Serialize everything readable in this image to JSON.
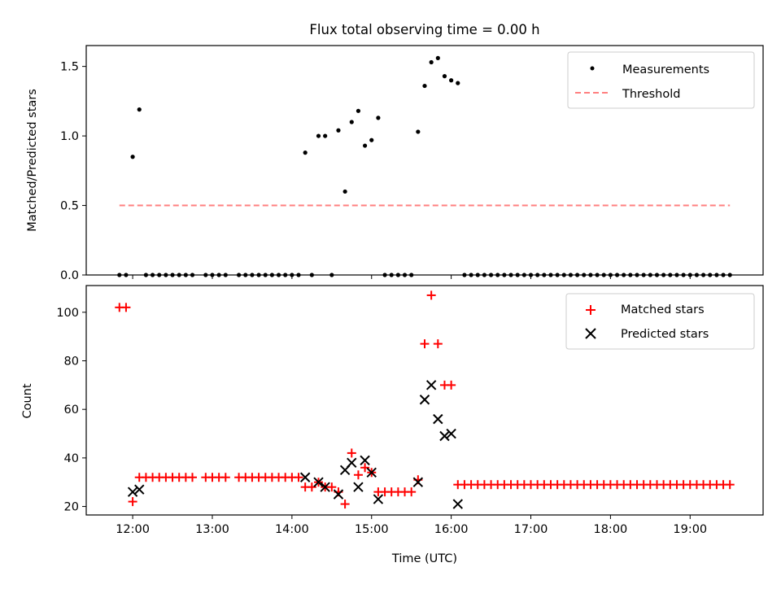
{
  "figure": {
    "title": "Flux total observing time = 0.00 h",
    "xlabel": "Time (UTC)",
    "x_ticks": [
      "12:00",
      "13:00",
      "14:00",
      "15:00",
      "16:00",
      "17:00",
      "18:00",
      "19:00"
    ]
  },
  "colors": {
    "measurements": "#000000",
    "threshold": "#ff8080",
    "matched": "#ff0000",
    "predicted": "#000000"
  },
  "chart_data": [
    {
      "type": "scatter",
      "ylabel": "Matched/Predicted stars",
      "xlim": [
        "11:25",
        "19:55"
      ],
      "ylim": [
        0,
        1.65
      ],
      "y_ticks": [
        "0.0",
        "0.5",
        "1.0",
        "1.5"
      ],
      "legend": {
        "placement": "upper right",
        "entries": [
          "Measurements",
          "Threshold"
        ]
      },
      "series": [
        {
          "name": "Measurements",
          "marker": "dot",
          "x": [
            "11:50",
            "11:55",
            "12:00",
            "12:05",
            "12:10",
            "12:15",
            "12:20",
            "12:25",
            "12:30",
            "12:35",
            "12:40",
            "12:45",
            "12:55",
            "13:00",
            "13:05",
            "13:10",
            "13:20",
            "13:25",
            "13:30",
            "13:35",
            "13:40",
            "13:45",
            "13:50",
            "13:55",
            "14:00",
            "14:05",
            "14:10",
            "14:15",
            "14:20",
            "14:25",
            "14:30",
            "14:35",
            "14:40",
            "14:45",
            "14:50",
            "14:55",
            "15:00",
            "15:05",
            "15:10",
            "15:15",
            "15:20",
            "15:25",
            "15:30",
            "15:35",
            "15:40",
            "15:45",
            "15:50",
            "15:55",
            "16:00",
            "16:05",
            "16:10",
            "16:15",
            "16:20",
            "16:25",
            "16:30",
            "16:35",
            "16:40",
            "16:45",
            "16:50",
            "16:55",
            "17:00",
            "17:05",
            "17:10",
            "17:15",
            "17:20",
            "17:25",
            "17:30",
            "17:35",
            "17:40",
            "17:45",
            "17:50",
            "17:55",
            "18:00",
            "18:05",
            "18:10",
            "18:15",
            "18:20",
            "18:25",
            "18:30",
            "18:35",
            "18:40",
            "18:45",
            "18:50",
            "18:55",
            "19:00",
            "19:05",
            "19:10",
            "19:15",
            "19:20",
            "19:25",
            "19:30"
          ],
          "y": [
            0,
            0,
            0.85,
            1.19,
            0,
            0,
            0,
            0,
            0,
            0,
            0,
            0,
            0,
            0,
            0,
            0,
            0,
            0,
            0,
            0,
            0,
            0,
            0,
            0,
            0,
            0,
            0.88,
            0,
            1.0,
            1.0,
            0,
            1.04,
            0.6,
            1.1,
            1.18,
            0.93,
            0.97,
            1.13,
            0,
            0,
            0,
            0,
            0,
            1.03,
            1.36,
            1.53,
            1.56,
            1.43,
            1.4,
            1.38,
            0,
            0,
            0,
            0,
            0,
            0,
            0,
            0,
            0,
            0,
            0,
            0,
            0,
            0,
            0,
            0,
            0,
            0,
            0,
            0,
            0,
            0,
            0,
            0,
            0,
            0,
            0,
            0,
            0,
            0,
            0,
            0,
            0,
            0,
            0,
            0,
            0,
            0,
            0,
            0,
            0
          ]
        },
        {
          "name": "Threshold",
          "type": "line",
          "style": "dashed",
          "x": [
            "11:50",
            "19:30"
          ],
          "y": [
            0.5,
            0.5
          ]
        }
      ]
    },
    {
      "type": "scatter",
      "ylabel": "Count",
      "xlim": [
        "11:25",
        "19:55"
      ],
      "ylim": [
        16.5,
        111
      ],
      "y_ticks": [
        "20",
        "40",
        "60",
        "80",
        "100"
      ],
      "legend": {
        "placement": "upper right",
        "entries": [
          "Matched stars",
          "Predicted stars"
        ]
      },
      "series": [
        {
          "name": "Matched stars",
          "marker": "plus",
          "x": [
            "11:50",
            "11:55",
            "12:00",
            "12:05",
            "12:10",
            "12:15",
            "12:20",
            "12:25",
            "12:30",
            "12:35",
            "12:40",
            "12:45",
            "12:55",
            "13:00",
            "13:05",
            "13:10",
            "13:20",
            "13:25",
            "13:30",
            "13:35",
            "13:40",
            "13:45",
            "13:50",
            "13:55",
            "14:00",
            "14:05",
            "14:10",
            "14:15",
            "14:20",
            "14:25",
            "14:30",
            "14:35",
            "14:40",
            "14:45",
            "14:50",
            "14:55",
            "15:00",
            "15:05",
            "15:10",
            "15:15",
            "15:20",
            "15:25",
            "15:30",
            "15:35",
            "15:40",
            "15:45",
            "15:50",
            "15:55",
            "16:00",
            "16:05",
            "16:10",
            "16:15",
            "16:20",
            "16:25",
            "16:30",
            "16:35",
            "16:40",
            "16:45",
            "16:50",
            "16:55",
            "17:00",
            "17:05",
            "17:10",
            "17:15",
            "17:20",
            "17:25",
            "17:30",
            "17:35",
            "17:40",
            "17:45",
            "17:50",
            "17:55",
            "18:00",
            "18:05",
            "18:10",
            "18:15",
            "18:20",
            "18:25",
            "18:30",
            "18:35",
            "18:40",
            "18:45",
            "18:50",
            "18:55",
            "19:00",
            "19:05",
            "19:10",
            "19:15",
            "19:20",
            "19:25",
            "19:30"
          ],
          "y": [
            102,
            102,
            22,
            32,
            32,
            32,
            32,
            32,
            32,
            32,
            32,
            32,
            32,
            32,
            32,
            32,
            32,
            32,
            32,
            32,
            32,
            32,
            32,
            32,
            32,
            32,
            28,
            28,
            30,
            28,
            28,
            26,
            21,
            42,
            33,
            36,
            34,
            26,
            26,
            26,
            26,
            26,
            26,
            31,
            87,
            107,
            87,
            70,
            70,
            29,
            29,
            29,
            29,
            29,
            29,
            29,
            29,
            29,
            29,
            29,
            29,
            29,
            29,
            29,
            29,
            29,
            29,
            29,
            29,
            29,
            29,
            29,
            29,
            29,
            29,
            29,
            29,
            29,
            29,
            29,
            29,
            29,
            29,
            29,
            29,
            29,
            29,
            29,
            29,
            29,
            29
          ]
        },
        {
          "name": "Predicted stars",
          "marker": "x",
          "x": [
            "12:00",
            "12:05",
            "14:10",
            "14:20",
            "14:25",
            "14:35",
            "14:40",
            "14:45",
            "14:50",
            "14:55",
            "15:00",
            "15:05",
            "15:35",
            "15:40",
            "15:45",
            "15:50",
            "15:55",
            "16:00",
            "16:05"
          ],
          "y": [
            26,
            27,
            32,
            30,
            28,
            25,
            35,
            38,
            28,
            39,
            34,
            23,
            30,
            64,
            70,
            56,
            49,
            50,
            21
          ]
        }
      ]
    }
  ]
}
